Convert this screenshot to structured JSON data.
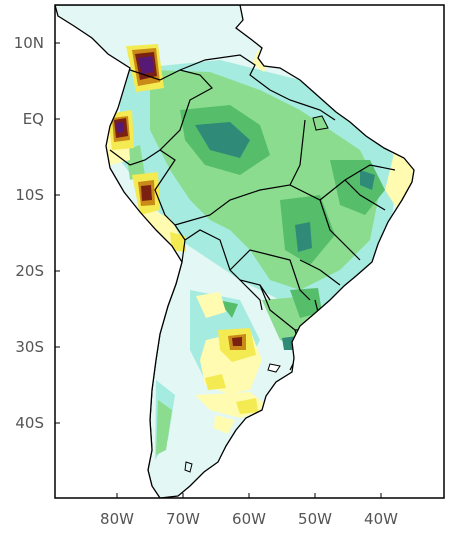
{
  "map": {
    "y_ticks": [
      "10N",
      "EQ",
      "10S",
      "20S",
      "30S",
      "40S"
    ],
    "x_ticks": [
      "80W",
      "70W",
      "60W",
      "50W",
      "40W"
    ],
    "colors": {
      "frame": "#000000",
      "ocean": "#ffffff",
      "light_cyan": "#e3f8f5",
      "aqua": "#a6ebdf",
      "light_green": "#8bdc8e",
      "green": "#56be6a",
      "teal": "#2f8a78",
      "light_yellow": "#fffbb0",
      "yellow": "#f4ea52",
      "orange": "#c98a17",
      "brown": "#7a2112",
      "purple": "#561a76"
    }
  }
}
